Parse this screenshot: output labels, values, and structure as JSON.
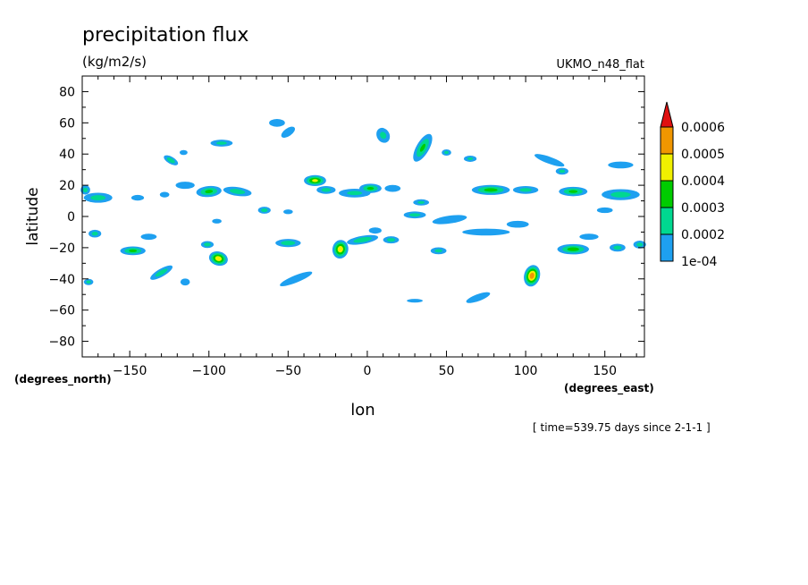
{
  "chart_data": {
    "type": "heatmap",
    "title": "precipitation flux",
    "units": "(kg/m2/s)",
    "model": "UKMO_n48_flat",
    "xlabel": "lon",
    "ylabel": "latitude",
    "x_units": "(degrees_east)",
    "y_units": "(degrees_north)",
    "time": "[ time=539.75 days since 2-1-1 ]",
    "xlim": [
      -180,
      175
    ],
    "ylim": [
      -90,
      90
    ],
    "x_ticks": [
      -150,
      -100,
      -50,
      0,
      50,
      100,
      150
    ],
    "x_tick_labels": [
      "-150",
      "-100",
      "-50",
      "0",
      "50",
      "100",
      "150"
    ],
    "y_ticks": [
      -80,
      -60,
      -40,
      -20,
      0,
      20,
      40,
      60,
      80
    ],
    "y_tick_labels": [
      "-80",
      "-60",
      "-40",
      "-20",
      "0",
      "20",
      "40",
      "60",
      "80"
    ],
    "x_minor_step": 10,
    "y_minor_step": 10,
    "legend": {
      "placement": "right",
      "levels": [
        0.0001,
        0.0002,
        0.0003,
        0.0004,
        0.0005,
        0.0006
      ],
      "labels": [
        "1e-04",
        "0.0002",
        "0.0003",
        "0.0004",
        "0.0005",
        "0.0006"
      ],
      "colors": [
        "#1ea0f0",
        "#00d890",
        "#00cc00",
        "#f0f000",
        "#f09600",
        "#e01010"
      ]
    },
    "features": [
      {
        "lon": -170,
        "lat": 12,
        "rlon": 9,
        "rlat": 3.2,
        "peak": 0.00023,
        "tilt": 0
      },
      {
        "lon": -178,
        "lat": 17,
        "rlon": 3,
        "rlat": 3,
        "peak": 0.00022,
        "tilt": 0
      },
      {
        "lon": -145,
        "lat": 12,
        "rlon": 4,
        "rlat": 1.8,
        "peak": 0.00015,
        "tilt": 0
      },
      {
        "lon": -128,
        "lat": 14,
        "rlon": 3,
        "rlat": 1.8,
        "peak": 0.00014,
        "tilt": 0
      },
      {
        "lon": -172,
        "lat": -11,
        "rlon": 4,
        "rlat": 2.5,
        "peak": 0.00022,
        "tilt": 0
      },
      {
        "lon": -148,
        "lat": -22,
        "rlon": 8,
        "rlat": 2.8,
        "peak": 0.00031,
        "tilt": 0
      },
      {
        "lon": -138,
        "lat": -13,
        "rlon": 5,
        "rlat": 2,
        "peak": 0.00016,
        "tilt": 0
      },
      {
        "lon": -176,
        "lat": -42,
        "rlon": 3,
        "rlat": 2,
        "peak": 0.00022,
        "tilt": 0
      },
      {
        "lon": -130,
        "lat": -36,
        "rlon": 8,
        "rlat": 2.5,
        "peak": 0.00024,
        "tilt": -30
      },
      {
        "lon": -115,
        "lat": -42,
        "rlon": 3,
        "rlat": 2.2,
        "peak": 0.00018,
        "tilt": 0
      },
      {
        "lon": -94,
        "lat": -27,
        "rlon": 6,
        "rlat": 4.5,
        "peak": 0.00048,
        "tilt": 15
      },
      {
        "lon": -101,
        "lat": -18,
        "rlon": 4,
        "rlat": 2.2,
        "peak": 0.00024,
        "tilt": 0
      },
      {
        "lon": -115,
        "lat": 20,
        "rlon": 6,
        "rlat": 2.3,
        "peak": 0.00019,
        "tilt": 0
      },
      {
        "lon": -100,
        "lat": 16,
        "rlon": 8,
        "rlat": 3.5,
        "peak": 0.00031,
        "tilt": -5
      },
      {
        "lon": -82,
        "lat": 16,
        "rlon": 9,
        "rlat": 2.8,
        "peak": 0.00024,
        "tilt": 8
      },
      {
        "lon": -124,
        "lat": 36,
        "rlon": 5,
        "rlat": 2.3,
        "peak": 0.00025,
        "tilt": 30
      },
      {
        "lon": -116,
        "lat": 41,
        "rlon": 2.5,
        "rlat": 1.6,
        "peak": 0.00014,
        "tilt": 0
      },
      {
        "lon": -92,
        "lat": 47,
        "rlon": 7,
        "rlat": 2.2,
        "peak": 0.00021,
        "tilt": 0
      },
      {
        "lon": -57,
        "lat": 60,
        "rlon": 5,
        "rlat": 2.5,
        "peak": 0.00017,
        "tilt": 0
      },
      {
        "lon": -50,
        "lat": 54,
        "rlon": 5,
        "rlat": 2.5,
        "peak": 0.00017,
        "tilt": -35
      },
      {
        "lon": -65,
        "lat": 4,
        "rlon": 4,
        "rlat": 2.2,
        "peak": 0.00023,
        "tilt": 0
      },
      {
        "lon": -50,
        "lat": 3,
        "rlon": 3,
        "rlat": 1.5,
        "peak": 0.00012,
        "tilt": 0
      },
      {
        "lon": -50,
        "lat": -17,
        "rlon": 8,
        "rlat": 2.6,
        "peak": 0.00025,
        "tilt": 0
      },
      {
        "lon": -45,
        "lat": -40,
        "rlon": 11,
        "rlat": 2.3,
        "peak": 0.00019,
        "tilt": -22
      },
      {
        "lon": -33,
        "lat": 23,
        "rlon": 7,
        "rlat": 3.5,
        "peak": 0.00043,
        "tilt": 0
      },
      {
        "lon": -26,
        "lat": 17,
        "rlon": 6,
        "rlat": 2.5,
        "peak": 0.00022,
        "tilt": 0
      },
      {
        "lon": -8,
        "lat": 15,
        "rlon": 10,
        "rlat": 2.8,
        "peak": 0.00021,
        "tilt": 0
      },
      {
        "lon": 2,
        "lat": 18,
        "rlon": 7,
        "rlat": 3,
        "peak": 0.00031,
        "tilt": 0
      },
      {
        "lon": 16,
        "lat": 18,
        "rlon": 5,
        "rlat": 2.2,
        "peak": 0.00018,
        "tilt": 0
      },
      {
        "lon": -17,
        "lat": -21,
        "rlon": 5,
        "rlat": 6,
        "peak": 0.00048,
        "tilt": 10
      },
      {
        "lon": -3,
        "lat": -15,
        "rlon": 10,
        "rlat": 2.6,
        "peak": 0.00026,
        "tilt": -10
      },
      {
        "lon": 5,
        "lat": -9,
        "rlon": 4,
        "rlat": 2,
        "peak": 0.00018,
        "tilt": 0
      },
      {
        "lon": 15,
        "lat": -15,
        "rlon": 5,
        "rlat": 2.3,
        "peak": 0.00023,
        "tilt": 0
      },
      {
        "lon": 10,
        "lat": 52,
        "rlon": 4,
        "rlat": 5,
        "peak": 0.00021,
        "tilt": -30
      },
      {
        "lon": 35,
        "lat": 44,
        "rlon": 4,
        "rlat": 10,
        "peak": 0.0003,
        "tilt": 30
      },
      {
        "lon": 50,
        "lat": 41,
        "rlon": 3,
        "rlat": 2,
        "peak": 0.0002,
        "tilt": 0
      },
      {
        "lon": 65,
        "lat": 37,
        "rlon": 4,
        "rlat": 2,
        "peak": 0.0002,
        "tilt": 0
      },
      {
        "lon": 30,
        "lat": 1,
        "rlon": 7,
        "rlat": 2.2,
        "peak": 0.00022,
        "tilt": 0
      },
      {
        "lon": 34,
        "lat": 9,
        "rlon": 5,
        "rlat": 2,
        "peak": 0.0002,
        "tilt": 0
      },
      {
        "lon": 52,
        "lat": -2,
        "rlon": 11,
        "rlat": 2.5,
        "peak": 0.00016,
        "tilt": -8
      },
      {
        "lon": 75,
        "lat": -10,
        "rlon": 15,
        "rlat": 2.2,
        "peak": 0.00015,
        "tilt": 0
      },
      {
        "lon": 95,
        "lat": -5,
        "rlon": 7,
        "rlat": 2.2,
        "peak": 0.00016,
        "tilt": 0
      },
      {
        "lon": 45,
        "lat": -22,
        "rlon": 5,
        "rlat": 2.2,
        "peak": 0.00021,
        "tilt": 0
      },
      {
        "lon": 78,
        "lat": 17,
        "rlon": 12,
        "rlat": 3.2,
        "peak": 0.00033,
        "tilt": 0
      },
      {
        "lon": 100,
        "lat": 17,
        "rlon": 8,
        "rlat": 2.5,
        "peak": 0.00021,
        "tilt": 0
      },
      {
        "lon": 130,
        "lat": 16,
        "rlon": 9,
        "rlat": 3,
        "peak": 0.00031,
        "tilt": 0
      },
      {
        "lon": 160,
        "lat": 14,
        "rlon": 12,
        "rlat": 3.5,
        "peak": 0.00023,
        "tilt": 0
      },
      {
        "lon": 104,
        "lat": -38,
        "rlon": 5,
        "rlat": 7,
        "peak": 0.00058,
        "tilt": 15
      },
      {
        "lon": 130,
        "lat": -21,
        "rlon": 10,
        "rlat": 3.3,
        "peak": 0.00034,
        "tilt": 0
      },
      {
        "lon": 158,
        "lat": -20,
        "rlon": 5,
        "rlat": 2.5,
        "peak": 0.00023,
        "tilt": 0
      },
      {
        "lon": 172,
        "lat": -18,
        "rlon": 4,
        "rlat": 2.5,
        "peak": 0.00022,
        "tilt": 0
      },
      {
        "lon": 140,
        "lat": -13,
        "rlon": 6,
        "rlat": 2,
        "peak": 0.00018,
        "tilt": 0
      },
      {
        "lon": 115,
        "lat": 36,
        "rlon": 10,
        "rlat": 2.2,
        "peak": 0.00017,
        "tilt": 20
      },
      {
        "lon": 123,
        "lat": 29,
        "rlon": 4,
        "rlat": 2.2,
        "peak": 0.00021,
        "tilt": 0
      },
      {
        "lon": 160,
        "lat": 33,
        "rlon": 8,
        "rlat": 2.2,
        "peak": 0.00017,
        "tilt": 0
      },
      {
        "lon": 70,
        "lat": -52,
        "rlon": 8,
        "rlat": 2.2,
        "peak": 0.00018,
        "tilt": -20
      },
      {
        "lon": 150,
        "lat": 4,
        "rlon": 5,
        "rlat": 1.8,
        "peak": 0.00016,
        "tilt": 0
      },
      {
        "lon": -95,
        "lat": -3,
        "rlon": 3,
        "rlat": 1.5,
        "peak": 0.00012,
        "tilt": 0
      },
      {
        "lon": 30,
        "lat": -54,
        "rlon": 5,
        "rlat": 1.2,
        "peak": 0.00012,
        "tilt": 0
      }
    ]
  }
}
